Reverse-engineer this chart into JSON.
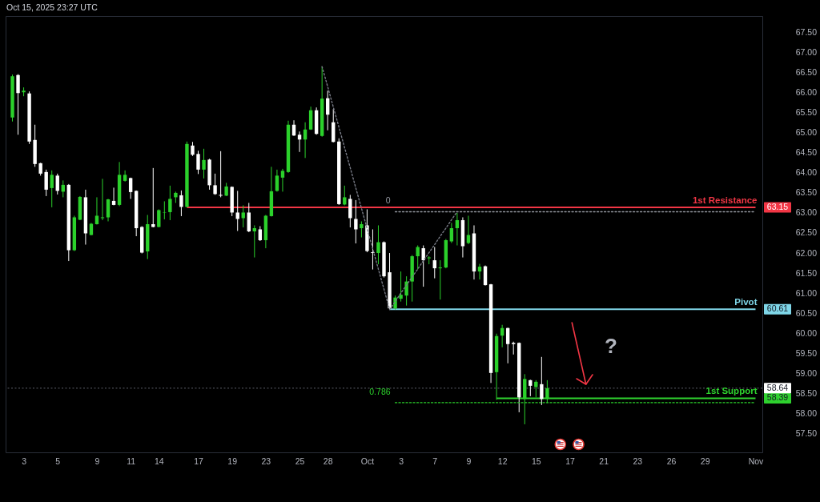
{
  "chart_data": {
    "type": "candlestick",
    "annotations": [
      "Oct 15, 2025 23:27 UTC",
      "?"
    ],
    "categories": [
      null,
      null,
      "3",
      null,
      null,
      null,
      null,
      null,
      "5",
      null,
      null,
      null,
      null,
      null,
      null,
      "9",
      null,
      null,
      null,
      null,
      null,
      "11",
      null,
      null,
      null,
      null,
      "14",
      null,
      null,
      null,
      null,
      null,
      null,
      "17",
      null,
      null,
      null,
      null,
      null,
      "19",
      null,
      null,
      null,
      null,
      null,
      "23",
      null,
      null,
      null,
      null,
      null,
      "25",
      null,
      null,
      null,
      null,
      "28",
      null,
      null,
      null,
      null,
      null,
      null,
      "Oct",
      null,
      null,
      null,
      null,
      null,
      "3",
      null,
      null,
      null,
      null,
      null,
      "7",
      null,
      null,
      null,
      null,
      null,
      "9",
      null,
      null,
      null,
      null,
      null,
      "12",
      null,
      null,
      null,
      null,
      null,
      "15",
      null,
      null,
      null,
      null,
      null,
      "17",
      null,
      null,
      null,
      null,
      null,
      "21",
      null,
      null,
      null,
      null,
      null,
      "23",
      null,
      null,
      null,
      null,
      null,
      "26",
      null,
      null,
      null,
      null,
      null,
      "29",
      null,
      null,
      null,
      null,
      null,
      null,
      null,
      null,
      "Nov"
    ],
    "ohlc": [
      [
        65.39,
        66.46,
        65.29,
        66.42
      ],
      [
        66.45,
        66.47,
        64.96,
        66.0
      ],
      [
        66.02,
        66.14,
        65.92,
        66.06
      ],
      [
        65.99,
        66.04,
        64.73,
        64.79
      ],
      [
        64.83,
        65.21,
        64.16,
        64.23
      ],
      [
        64.25,
        64.26,
        63.94,
        63.99
      ],
      [
        64.03,
        64.09,
        63.43,
        63.59
      ],
      [
        63.63,
        64.07,
        63.15,
        63.96
      ],
      [
        63.94,
        63.99,
        63.47,
        63.56
      ],
      [
        63.54,
        63.82,
        63.4,
        63.71
      ],
      [
        63.71,
        63.73,
        61.81,
        62.08
      ],
      [
        62.08,
        62.94,
        62.06,
        62.9
      ],
      [
        62.84,
        63.43,
        62.83,
        63.41
      ],
      [
        63.4,
        63.59,
        62.22,
        62.5
      ],
      [
        62.46,
        62.76,
        62.45,
        62.74
      ],
      [
        62.73,
        63.4,
        62.72,
        62.94
      ],
      [
        62.88,
        63.86,
        62.83,
        62.9
      ],
      [
        62.9,
        63.36,
        62.8,
        63.35
      ],
      [
        63.31,
        63.64,
        63.2,
        63.21
      ],
      [
        63.21,
        64.28,
        63.18,
        63.96
      ],
      [
        63.81,
        64.07,
        63.79,
        63.96
      ],
      [
        63.88,
        63.89,
        63.36,
        63.53
      ],
      [
        63.56,
        63.57,
        62.43,
        62.63
      ],
      [
        62.66,
        62.68,
        62.0,
        62.02
      ],
      [
        62.05,
        62.96,
        61.86,
        62.73
      ],
      [
        62.73,
        64.13,
        62.65,
        62.66
      ],
      [
        62.66,
        63.1,
        62.65,
        63.08
      ],
      [
        63.02,
        63.3,
        62.85,
        63.03
      ],
      [
        63.03,
        63.69,
        62.83,
        63.36
      ],
      [
        63.4,
        63.54,
        63.26,
        63.51
      ],
      [
        63.45,
        63.57,
        62.93,
        63.16
      ],
      [
        63.16,
        64.79,
        63.15,
        64.73
      ],
      [
        64.69,
        64.78,
        64.43,
        64.46
      ],
      [
        64.48,
        64.56,
        63.98,
        64.09
      ],
      [
        64.09,
        64.61,
        63.87,
        64.33
      ],
      [
        64.34,
        64.36,
        63.59,
        63.7
      ],
      [
        63.7,
        63.99,
        63.46,
        63.48
      ],
      [
        63.46,
        64.55,
        63.4,
        63.44
      ],
      [
        63.44,
        63.76,
        63.43,
        63.67
      ],
      [
        63.66,
        63.67,
        62.93,
        63.02
      ],
      [
        63.02,
        63.56,
        62.56,
        62.86
      ],
      [
        62.88,
        63.2,
        62.65,
        63.02
      ],
      [
        63.02,
        63.26,
        62.53,
        62.55
      ],
      [
        62.55,
        62.7,
        61.9,
        62.63
      ],
      [
        62.6,
        62.68,
        62.31,
        62.33
      ],
      [
        62.33,
        62.96,
        62.13,
        62.94
      ],
      [
        62.93,
        64.16,
        62.92,
        63.55
      ],
      [
        63.56,
        64.09,
        63.54,
        63.94
      ],
      [
        63.89,
        64.11,
        63.54,
        64.06
      ],
      [
        64.03,
        65.31,
        64.01,
        65.21
      ],
      [
        65.21,
        65.32,
        64.93,
        64.94
      ],
      [
        64.96,
        65.04,
        64.53,
        64.84
      ],
      [
        64.84,
        65.27,
        64.38,
        65.09
      ],
      [
        65.09,
        65.66,
        65.08,
        65.57
      ],
      [
        65.57,
        65.64,
        64.96,
        64.98
      ],
      [
        64.93,
        66.66,
        64.91,
        65.86
      ],
      [
        65.87,
        66.06,
        65.07,
        65.46
      ],
      [
        65.27,
        65.6,
        64.77,
        64.78
      ],
      [
        64.79,
        64.87,
        63.21,
        63.23
      ],
      [
        63.22,
        63.69,
        63.2,
        63.4
      ],
      [
        63.36,
        63.46,
        62.65,
        62.88
      ],
      [
        62.86,
        63.33,
        62.25,
        62.6
      ],
      [
        62.63,
        62.8,
        62.4,
        62.73
      ],
      [
        62.7,
        63.1,
        62.03,
        62.06
      ],
      [
        62.03,
        62.6,
        61.6,
        62.01
      ],
      [
        62.01,
        62.7,
        61.73,
        62.28
      ],
      [
        62.28,
        62.3,
        61.4,
        61.43
      ],
      [
        61.53,
        62.01,
        60.6,
        60.63
      ],
      [
        60.63,
        60.95,
        60.6,
        60.9
      ],
      [
        60.87,
        61.55,
        60.8,
        60.97
      ],
      [
        60.95,
        61.43,
        60.7,
        61.3
      ],
      [
        61.3,
        61.96,
        60.8,
        61.93
      ],
      [
        61.93,
        62.2,
        61.6,
        62.16
      ],
      [
        62.13,
        62.2,
        61.17,
        61.83
      ],
      [
        61.88,
        61.93,
        61.73,
        61.9
      ],
      [
        61.83,
        62.16,
        61.38,
        61.63
      ],
      [
        61.63,
        61.83,
        60.85,
        61.65
      ],
      [
        61.65,
        62.36,
        61.63,
        62.33
      ],
      [
        62.3,
        62.76,
        62.26,
        62.63
      ],
      [
        62.63,
        63.01,
        62.2,
        62.83
      ],
      [
        62.83,
        62.9,
        61.9,
        62.18
      ],
      [
        62.26,
        62.94,
        62.23,
        62.46
      ],
      [
        62.5,
        62.7,
        61.35,
        61.55
      ],
      [
        61.55,
        61.74,
        61.35,
        61.67
      ],
      [
        61.68,
        61.7,
        61.2,
        61.21
      ],
      [
        61.23,
        61.24,
        58.77,
        59.02
      ],
      [
        59.04,
        60.0,
        58.35,
        59.94
      ],
      [
        59.95,
        60.22,
        59.66,
        60.14
      ],
      [
        60.14,
        60.15,
        59.26,
        59.74
      ],
      [
        59.77,
        59.8,
        59.48,
        59.74
      ],
      [
        59.77,
        59.78,
        58.04,
        58.41
      ],
      [
        58.37,
        58.99,
        57.74,
        58.87
      ],
      [
        58.84,
        58.85,
        58.44,
        58.7
      ],
      [
        58.67,
        58.84,
        58.41,
        58.8
      ],
      [
        58.74,
        59.42,
        58.22,
        58.37
      ],
      [
        58.37,
        58.84,
        58.27,
        58.64
      ],
      null,
      null,
      null,
      null,
      null,
      null,
      null,
      null,
      null,
      null,
      null,
      null,
      null,
      null,
      null,
      null,
      null,
      null,
      null,
      null,
      null,
      null,
      null,
      null,
      null,
      null,
      null,
      null,
      null,
      null,
      null,
      null,
      null,
      null,
      null,
      null,
      null
    ],
    "colors": [
      "#2bd12b",
      "#ffffff",
      "#2bd12b",
      "#ffffff",
      "#ffffff",
      "#ffffff",
      "#ffffff",
      "#2bd12b",
      "#ffffff",
      "#2bd12b",
      "#ffffff",
      "#2bd12b",
      "#2bd12b",
      "#ffffff",
      "#2bd12b",
      "#2bd12b",
      "#2bd12b",
      "#2bd12b",
      "#ffffff",
      "#2bd12b",
      "#2bd12b",
      "#ffffff",
      "#ffffff",
      "#ffffff",
      "#2bd12b",
      "#ffffff",
      "#2bd12b",
      "#2bd12b",
      "#2bd12b",
      "#2bd12b",
      "#ffffff",
      "#2bd12b",
      "#ffffff",
      "#ffffff",
      "#2bd12b",
      "#ffffff",
      "#ffffff",
      "#ffffff",
      "#2bd12b",
      "#ffffff",
      "#ffffff",
      "#2bd12b",
      "#ffffff",
      "#2bd12b",
      "#ffffff",
      "#2bd12b",
      "#2bd12b",
      "#2bd12b",
      "#2bd12b",
      "#2bd12b",
      "#ffffff",
      "#ffffff",
      "#2bd12b",
      "#2bd12b",
      "#ffffff",
      "#2bd12b",
      "#ffffff",
      "#ffffff",
      "#ffffff",
      "#2bd12b",
      "#ffffff",
      "#ffffff",
      "#2bd12b",
      "#ffffff",
      "#ffffff",
      "#2bd12b",
      "#ffffff",
      "#ffffff",
      "#2bd12b",
      "#2bd12b",
      "#2bd12b",
      "#2bd12b",
      "#2bd12b",
      "#ffffff",
      "#2bd12b",
      "#ffffff",
      "#2bd12b",
      "#2bd12b",
      "#2bd12b",
      "#2bd12b",
      "#ffffff",
      "#2bd12b",
      "#ffffff",
      "#2bd12b",
      "#ffffff",
      "#ffffff",
      "#2bd12b",
      "#2bd12b",
      "#ffffff",
      "#ffffff",
      "#ffffff",
      "#2bd12b",
      "#ffffff",
      "#2bd12b",
      "#ffffff",
      "#2bd12b",
      null,
      null,
      null,
      null,
      null,
      null,
      null,
      null,
      null,
      null,
      null,
      null,
      null,
      null,
      null,
      null,
      null,
      null,
      null,
      null,
      null,
      null,
      null,
      null,
      null,
      null,
      null,
      null,
      null,
      null,
      null,
      null,
      null,
      null,
      null,
      null,
      null
    ],
    "ylim": [
      57.04,
      67.92
    ],
    "yticks": [
      {
        "value": 57.5,
        "label": "57.50"
      },
      {
        "value": 58,
        "label": "58.00"
      },
      {
        "value": 58.5,
        "label": "58.50"
      },
      {
        "value": 59,
        "label": "59.00"
      },
      {
        "value": 59.5,
        "label": "59.50"
      },
      {
        "value": 60,
        "label": "60.00"
      },
      {
        "value": 60.5,
        "label": "60.50"
      },
      {
        "value": 61,
        "label": "61.00"
      },
      {
        "value": 61.5,
        "label": "61.50"
      },
      {
        "value": 62,
        "label": "62.00"
      },
      {
        "value": 62.5,
        "label": "62.50"
      },
      {
        "value": 63,
        "label": "63.00"
      },
      {
        "value": 63.5,
        "label": "63.50"
      },
      {
        "value": 64,
        "label": "64.00"
      },
      {
        "value": 64.5,
        "label": "64.50"
      },
      {
        "value": 65,
        "label": "65.00"
      },
      {
        "value": 65.5,
        "label": "65.50"
      },
      {
        "value": 66,
        "label": "66.00"
      },
      {
        "value": 66.5,
        "label": "66.50"
      },
      {
        "value": 67,
        "label": "67.00"
      },
      {
        "value": 67.5,
        "label": "67.50"
      }
    ],
    "series": [
      {
        "type": "line",
        "color": "#787b86",
        "line_style": "dotted",
        "values": [
          null,
          null,
          null,
          null,
          null,
          null,
          null,
          null,
          null,
          null,
          null,
          null,
          null,
          null,
          null,
          null,
          null,
          null,
          null,
          null,
          null,
          null,
          null,
          null,
          null,
          null,
          null,
          null,
          null,
          null,
          null,
          null,
          null,
          null,
          null,
          null,
          null,
          null,
          null,
          null,
          null,
          null,
          null,
          null,
          null,
          null,
          null,
          null,
          null,
          null,
          null,
          null,
          null,
          null,
          null,
          66.66,
          66.16,
          65.65,
          65.15,
          64.64,
          64.14,
          63.63,
          63.13,
          62.62,
          62.12,
          61.61,
          61.11,
          60.6,
          60.8,
          61.01,
          61.21,
          61.41,
          61.61,
          61.82,
          62.02,
          62.22,
          62.43,
          62.63,
          62.84,
          63.04,
          null,
          null,
          null,
          null,
          null,
          null,
          null,
          null,
          null,
          null,
          null,
          null,
          null,
          null,
          null,
          null,
          null,
          null,
          null,
          null,
          null,
          null,
          null,
          null,
          null,
          null,
          null,
          null,
          null,
          null,
          null,
          null,
          null,
          null,
          null,
          null,
          null,
          null,
          null,
          null,
          null,
          null,
          null,
          null,
          null,
          null,
          null,
          null,
          null,
          null,
          null,
          null,
          null
        ]
      },
      {
        "name": "0",
        "type": "line",
        "color": "#9598a1",
        "line_style": "dotted",
        "values": [
          null,
          null,
          null,
          null,
          null,
          null,
          null,
          null,
          null,
          null,
          null,
          null,
          null,
          null,
          null,
          null,
          null,
          null,
          null,
          null,
          null,
          null,
          null,
          null,
          null,
          null,
          null,
          null,
          null,
          null,
          null,
          null,
          null,
          null,
          null,
          null,
          null,
          null,
          null,
          null,
          null,
          null,
          null,
          null,
          null,
          null,
          null,
          null,
          null,
          null,
          null,
          null,
          null,
          null,
          null,
          null,
          null,
          null,
          null,
          null,
          null,
          null,
          null,
          null,
          null,
          null,
          null,
          null,
          63.04,
          63.04,
          63.04,
          63.04,
          63.04,
          63.04,
          63.04,
          63.04,
          63.04,
          63.04,
          63.04,
          63.04,
          63.04,
          63.04,
          63.04,
          63.04,
          63.04,
          63.04,
          63.04,
          63.04,
          63.04,
          63.04,
          63.04,
          63.04,
          63.04,
          63.04,
          63.04,
          63.04,
          63.04,
          63.04,
          63.04,
          63.04,
          63.04,
          63.04,
          63.04,
          63.04,
          63.04,
          63.04,
          63.04,
          63.04,
          63.04,
          63.04,
          63.04,
          63.04,
          63.04,
          63.04,
          63.04,
          63.04,
          63.04,
          63.04,
          63.04,
          63.04,
          63.04,
          63.04,
          63.04,
          63.04,
          63.04,
          63.04,
          63.04,
          63.04,
          63.04,
          63.04,
          63.04,
          63.04,
          63.04
        ]
      },
      {
        "name": "0.786",
        "type": "line",
        "color": "#2bd12b",
        "line_style": "dotted",
        "values": [
          null,
          null,
          null,
          null,
          null,
          null,
          null,
          null,
          null,
          null,
          null,
          null,
          null,
          null,
          null,
          null,
          null,
          null,
          null,
          null,
          null,
          null,
          null,
          null,
          null,
          null,
          null,
          null,
          null,
          null,
          null,
          null,
          null,
          null,
          null,
          null,
          null,
          null,
          null,
          null,
          null,
          null,
          null,
          null,
          null,
          null,
          null,
          null,
          null,
          null,
          null,
          null,
          null,
          null,
          null,
          null,
          null,
          null,
          null,
          null,
          null,
          null,
          null,
          null,
          null,
          null,
          null,
          null,
          58.28,
          58.28,
          58.28,
          58.28,
          58.28,
          58.28,
          58.28,
          58.28,
          58.28,
          58.28,
          58.28,
          58.28,
          58.28,
          58.28,
          58.28,
          58.28,
          58.28,
          58.28,
          58.28,
          58.28,
          58.28,
          58.28,
          58.28,
          58.28,
          58.28,
          58.28,
          58.28,
          58.28,
          58.28,
          58.28,
          58.28,
          58.28,
          58.28,
          58.28,
          58.28,
          58.28,
          58.28,
          58.28,
          58.28,
          58.28,
          58.28,
          58.28,
          58.28,
          58.28,
          58.28,
          58.28,
          58.28,
          58.28,
          58.28,
          58.28,
          58.28,
          58.28,
          58.28,
          58.28,
          58.28,
          58.28,
          58.28,
          58.28,
          58.28,
          58.28,
          58.28,
          58.28,
          58.28,
          58.28,
          58.28
        ]
      },
      {
        "name": "1st Resistance",
        "type": "line",
        "color": "#f23645",
        "line_style": "solid",
        "values": [
          null,
          null,
          null,
          null,
          null,
          null,
          null,
          null,
          null,
          null,
          null,
          null,
          null,
          null,
          null,
          null,
          null,
          null,
          null,
          null,
          null,
          null,
          null,
          null,
          null,
          null,
          null,
          null,
          null,
          null,
          null,
          63.15,
          63.15,
          63.15,
          63.15,
          63.15,
          63.15,
          63.15,
          63.15,
          63.15,
          63.15,
          63.15,
          63.15,
          63.15,
          63.15,
          63.15,
          63.15,
          63.15,
          63.15,
          63.15,
          63.15,
          63.15,
          63.15,
          63.15,
          63.15,
          63.15,
          63.15,
          63.15,
          63.15,
          63.15,
          63.15,
          63.15,
          63.15,
          63.15,
          63.15,
          63.15,
          63.15,
          63.15,
          63.15,
          63.15,
          63.15,
          63.15,
          63.15,
          63.15,
          63.15,
          63.15,
          63.15,
          63.15,
          63.15,
          63.15,
          63.15,
          63.15,
          63.15,
          63.15,
          63.15,
          63.15,
          63.15,
          63.15,
          63.15,
          63.15,
          63.15,
          63.15,
          63.15,
          63.15,
          63.15,
          63.15,
          63.15,
          63.15,
          63.15,
          63.15,
          63.15,
          63.15,
          63.15,
          63.15,
          63.15,
          63.15,
          63.15,
          63.15,
          63.15,
          63.15,
          63.15,
          63.15,
          63.15,
          63.15,
          63.15,
          63.15,
          63.15,
          63.15,
          63.15,
          63.15,
          63.15,
          63.15,
          63.15,
          63.15,
          63.15,
          63.15,
          63.15,
          63.15,
          63.15,
          63.15,
          63.15,
          63.15,
          63.15
        ],
        "value_labels": [
          null,
          null,
          null,
          null,
          null,
          null,
          null,
          null,
          null,
          null,
          null,
          null,
          null,
          null,
          null,
          null,
          null,
          null,
          null,
          null,
          null,
          null,
          null,
          null,
          null,
          null,
          null,
          null,
          null,
          null,
          null,
          null,
          null,
          null,
          null,
          null,
          null,
          null,
          null,
          null,
          null,
          null,
          null,
          null,
          null,
          null,
          null,
          null,
          null,
          null,
          null,
          null,
          null,
          null,
          null,
          null,
          null,
          null,
          null,
          null,
          null,
          null,
          null,
          null,
          null,
          null,
          null,
          null,
          null,
          null,
          null,
          null,
          null,
          null,
          null,
          null,
          null,
          null,
          null,
          null,
          null,
          null,
          null,
          null,
          null,
          null,
          null,
          null,
          null,
          null,
          null,
          null,
          null,
          null,
          null,
          null,
          null,
          null,
          null,
          null,
          null,
          null,
          null,
          null,
          null,
          null,
          null,
          null,
          null,
          null,
          null,
          null,
          null,
          null,
          null,
          null,
          null,
          null,
          null,
          null,
          null,
          null,
          null,
          null,
          null,
          null,
          null,
          null,
          null,
          null,
          null,
          null,
          "63.15"
        ]
      },
      {
        "name": "Pivot",
        "type": "line",
        "color": "#7fd6e8",
        "line_style": "solid",
        "values": [
          null,
          null,
          null,
          null,
          null,
          null,
          null,
          null,
          null,
          null,
          null,
          null,
          null,
          null,
          null,
          null,
          null,
          null,
          null,
          null,
          null,
          null,
          null,
          null,
          null,
          null,
          null,
          null,
          null,
          null,
          null,
          null,
          null,
          null,
          null,
          null,
          null,
          null,
          null,
          null,
          null,
          null,
          null,
          null,
          null,
          null,
          null,
          null,
          null,
          null,
          null,
          null,
          null,
          null,
          null,
          null,
          null,
          null,
          null,
          null,
          null,
          null,
          null,
          null,
          null,
          null,
          null,
          60.61,
          60.61,
          60.61,
          60.61,
          60.61,
          60.61,
          60.61,
          60.61,
          60.61,
          60.61,
          60.61,
          60.61,
          60.61,
          60.61,
          60.61,
          60.61,
          60.61,
          60.61,
          60.61,
          60.61,
          60.61,
          60.61,
          60.61,
          60.61,
          60.61,
          60.61,
          60.61,
          60.61,
          60.61,
          60.61,
          60.61,
          60.61,
          60.61,
          60.61,
          60.61,
          60.61,
          60.61,
          60.61,
          60.61,
          60.61,
          60.61,
          60.61,
          60.61,
          60.61,
          60.61,
          60.61,
          60.61,
          60.61,
          60.61,
          60.61,
          60.61,
          60.61,
          60.61,
          60.61,
          60.61,
          60.61,
          60.61,
          60.61,
          60.61,
          60.61,
          60.61,
          60.61,
          60.61,
          60.61,
          60.61,
          60.61
        ],
        "value_labels": [
          null,
          null,
          null,
          null,
          null,
          null,
          null,
          null,
          null,
          null,
          null,
          null,
          null,
          null,
          null,
          null,
          null,
          null,
          null,
          null,
          null,
          null,
          null,
          null,
          null,
          null,
          null,
          null,
          null,
          null,
          null,
          null,
          null,
          null,
          null,
          null,
          null,
          null,
          null,
          null,
          null,
          null,
          null,
          null,
          null,
          null,
          null,
          null,
          null,
          null,
          null,
          null,
          null,
          null,
          null,
          null,
          null,
          null,
          null,
          null,
          null,
          null,
          null,
          null,
          null,
          null,
          null,
          null,
          null,
          null,
          null,
          null,
          null,
          null,
          null,
          null,
          null,
          null,
          null,
          null,
          null,
          null,
          null,
          null,
          null,
          null,
          null,
          null,
          null,
          null,
          null,
          null,
          null,
          null,
          null,
          null,
          null,
          null,
          null,
          null,
          null,
          null,
          null,
          null,
          null,
          null,
          null,
          null,
          null,
          null,
          null,
          null,
          null,
          null,
          null,
          null,
          null,
          null,
          null,
          null,
          null,
          null,
          null,
          null,
          null,
          null,
          null,
          null,
          null,
          null,
          null,
          null,
          "60.61"
        ]
      },
      {
        "name": "1st Support",
        "type": "line",
        "color": "#2ed12e",
        "line_style": "solid",
        "values": [
          null,
          null,
          null,
          null,
          null,
          null,
          null,
          null,
          null,
          null,
          null,
          null,
          null,
          null,
          null,
          null,
          null,
          null,
          null,
          null,
          null,
          null,
          null,
          null,
          null,
          null,
          null,
          null,
          null,
          null,
          null,
          null,
          null,
          null,
          null,
          null,
          null,
          null,
          null,
          null,
          null,
          null,
          null,
          null,
          null,
          null,
          null,
          null,
          null,
          null,
          null,
          null,
          null,
          null,
          null,
          null,
          null,
          null,
          null,
          null,
          null,
          null,
          null,
          null,
          null,
          null,
          null,
          null,
          null,
          null,
          null,
          null,
          null,
          null,
          null,
          null,
          null,
          null,
          null,
          null,
          null,
          null,
          null,
          null,
          null,
          null,
          58.39,
          58.39,
          58.39,
          58.39,
          58.39,
          58.39,
          58.39,
          58.39,
          58.39,
          58.39,
          58.39,
          58.39,
          58.39,
          58.39,
          58.39,
          58.39,
          58.39,
          58.39,
          58.39,
          58.39,
          58.39,
          58.39,
          58.39,
          58.39,
          58.39,
          58.39,
          58.39,
          58.39,
          58.39,
          58.39,
          58.39,
          58.39,
          58.39,
          58.39,
          58.39,
          58.39,
          58.39,
          58.39,
          58.39,
          58.39,
          58.39,
          58.39,
          58.39,
          58.39,
          58.39,
          58.39,
          58.39
        ],
        "value_labels": [
          null,
          null,
          null,
          null,
          null,
          null,
          null,
          null,
          null,
          null,
          null,
          null,
          null,
          null,
          null,
          null,
          null,
          null,
          null,
          null,
          null,
          null,
          null,
          null,
          null,
          null,
          null,
          null,
          null,
          null,
          null,
          null,
          null,
          null,
          null,
          null,
          null,
          null,
          null,
          null,
          null,
          null,
          null,
          null,
          null,
          null,
          null,
          null,
          null,
          null,
          null,
          null,
          null,
          null,
          null,
          null,
          null,
          null,
          null,
          null,
          null,
          null,
          null,
          null,
          null,
          null,
          null,
          null,
          null,
          null,
          null,
          null,
          null,
          null,
          null,
          null,
          null,
          null,
          null,
          null,
          null,
          null,
          null,
          null,
          null,
          null,
          null,
          null,
          null,
          null,
          null,
          null,
          null,
          null,
          null,
          null,
          null,
          null,
          null,
          null,
          null,
          null,
          null,
          null,
          null,
          null,
          null,
          null,
          null,
          null,
          null,
          null,
          null,
          null,
          null,
          null,
          null,
          null,
          null,
          null,
          null,
          null,
          null,
          null,
          null,
          null,
          null,
          null,
          null,
          null,
          null,
          null,
          "58.39"
        ]
      }
    ],
    "ref_lines": [
      {
        "axis": "y",
        "value": 58.64,
        "label": "58.64",
        "color": "#5d606b",
        "line_style": "dotted"
      }
    ]
  }
}
